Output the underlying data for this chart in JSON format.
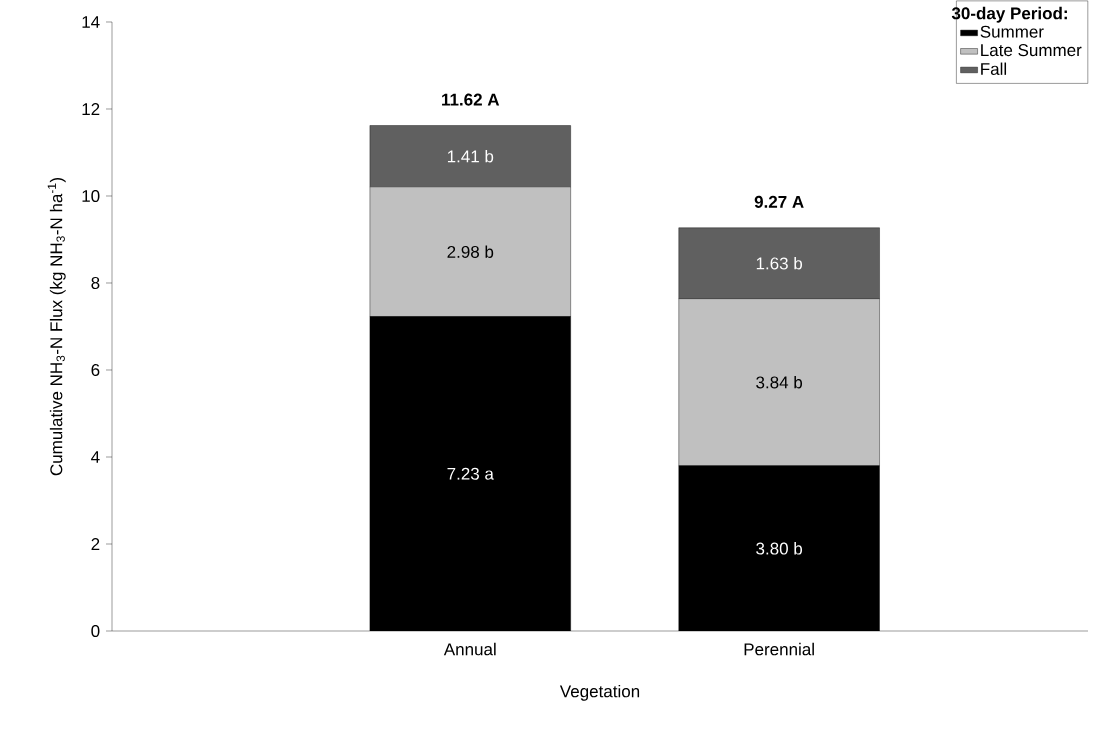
{
  "chart_data": {
    "type": "bar",
    "stacked": true,
    "xlabel": "Vegetation",
    "ylabel": "Cumulative NH$_{3}$-N Flux (kg NH$_{3}$-N ha$^{-1}$)",
    "legend_title": "30-day Period:",
    "legend": "top right",
    "categories": [
      "Annual",
      "Perennial"
    ],
    "ylim": [
      0,
      14
    ],
    "yticks": [
      0,
      2,
      4,
      6,
      8,
      10,
      12,
      14
    ],
    "series": [
      {
        "name": "Summer",
        "color": "#000000",
        "values": [
          7.23,
          3.8
        ],
        "value_labels": [
          "7.23 a",
          "3.80 b"
        ]
      },
      {
        "name": "Late Summer",
        "color": "#c0c0c0",
        "values": [
          2.98,
          3.84
        ],
        "value_labels": [
          "2.98 b",
          "3.84 b"
        ]
      },
      {
        "name": "Fall",
        "color": "#606060",
        "values": [
          1.41,
          1.63
        ],
        "value_labels": [
          "1.41 b",
          "1.63 b"
        ]
      }
    ],
    "totals": [
      "11.62 A",
      "9.27 A"
    ]
  }
}
